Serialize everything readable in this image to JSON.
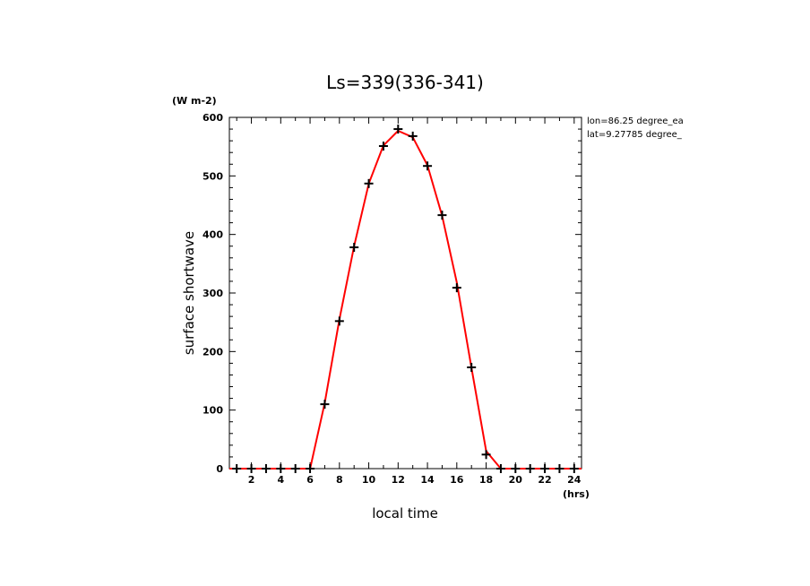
{
  "chart_data": {
    "type": "line",
    "title": "Ls=339(336-341)",
    "xlabel": "local time",
    "ylabel": "surface shortwave",
    "x_unit": "(hrs)",
    "y_unit": "(W m-2)",
    "xlim": [
      0.5,
      24.5
    ],
    "ylim": [
      0,
      600
    ],
    "x_ticks": [
      2,
      4,
      6,
      8,
      10,
      12,
      14,
      16,
      18,
      20,
      22,
      24
    ],
    "y_ticks": [
      0,
      100,
      200,
      300,
      400,
      500,
      600
    ],
    "annotations": [
      "lon=86.25 degree_ea",
      "lat=9.27785 degree_"
    ],
    "grid": false,
    "series": [
      {
        "color": "#ff0000",
        "style": "line",
        "x": [
          0.5,
          1,
          2,
          3,
          4,
          5,
          6,
          7,
          8,
          9,
          10,
          11,
          12,
          13,
          14,
          15,
          16,
          17,
          18,
          19,
          20,
          21,
          22,
          23,
          24,
          24.5
        ],
        "y": [
          0,
          0,
          0,
          0,
          0,
          0,
          0,
          112,
          255,
          380,
          487,
          552,
          577,
          566,
          518,
          432,
          318,
          172,
          30,
          0,
          0,
          0,
          0,
          0,
          0,
          0
        ]
      },
      {
        "color": "#000000",
        "style": "markers",
        "marker": "plus",
        "x": [
          1,
          2,
          3,
          4,
          5,
          6,
          7,
          8,
          9,
          10,
          11,
          12,
          13,
          14,
          15,
          16,
          17,
          18,
          19,
          20,
          21,
          22,
          23,
          24
        ],
        "y": [
          0,
          0,
          0,
          0,
          0,
          0,
          110,
          252,
          378,
          487,
          551,
          580,
          568,
          517,
          433,
          309,
          173,
          24,
          0,
          0,
          0,
          0,
          0,
          0
        ]
      }
    ]
  }
}
